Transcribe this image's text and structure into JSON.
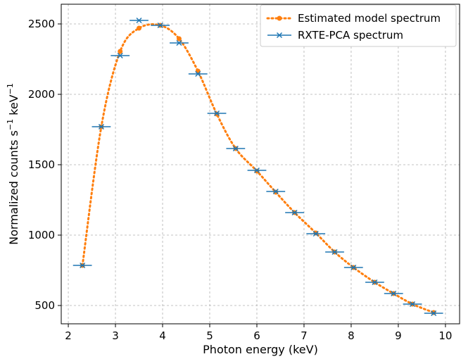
{
  "chart_data": {
    "type": "scatter",
    "xlabel": "Photon energy (keV)",
    "ylabel_parts": [
      "Normalized counts s",
      "−1",
      " keV",
      "−1"
    ],
    "xlim": [
      1.85,
      10.3
    ],
    "ylim": [
      370,
      2640
    ],
    "xticks": [
      2,
      3,
      4,
      5,
      6,
      7,
      8,
      9,
      10
    ],
    "yticks": [
      500,
      1000,
      1500,
      2000,
      2500
    ],
    "grid": true,
    "legend_position": "top-right",
    "colors": {
      "model": "#ff7f0e",
      "data": "#1f77b4",
      "grid": "#b0b0b0"
    },
    "series": [
      {
        "name": "Estimated model spectrum",
        "style": "dotted-line-with-circles",
        "x": [
          2.3,
          2.7,
          3.1,
          3.5,
          3.95,
          4.35,
          4.75,
          5.15,
          5.55,
          6.0,
          6.4,
          6.8,
          7.25,
          7.65,
          8.05,
          8.5,
          8.9,
          9.3,
          9.75
        ],
        "y": [
          785,
          1770,
          2305,
          2470,
          2490,
          2395,
          2165,
          1860,
          1615,
          1455,
          1305,
          1160,
          1015,
          880,
          770,
          665,
          585,
          510,
          450
        ]
      },
      {
        "name": "RXTE-PCA spectrum",
        "style": "x-markers-with-xerr",
        "x": [
          2.3,
          2.7,
          3.1,
          3.5,
          3.95,
          4.35,
          4.75,
          5.15,
          5.55,
          6.0,
          6.4,
          6.8,
          7.25,
          7.65,
          8.05,
          8.5,
          8.9,
          9.3,
          9.75
        ],
        "xerr": [
          0.2,
          0.2,
          0.2,
          0.2,
          0.2,
          0.2,
          0.2,
          0.2,
          0.2,
          0.2,
          0.2,
          0.2,
          0.2,
          0.2,
          0.2,
          0.2,
          0.2,
          0.2,
          0.2
        ],
        "y": [
          785,
          1770,
          2275,
          2525,
          2490,
          2365,
          2145,
          1865,
          1615,
          1460,
          1310,
          1160,
          1010,
          880,
          770,
          665,
          585,
          510,
          445
        ]
      }
    ]
  }
}
